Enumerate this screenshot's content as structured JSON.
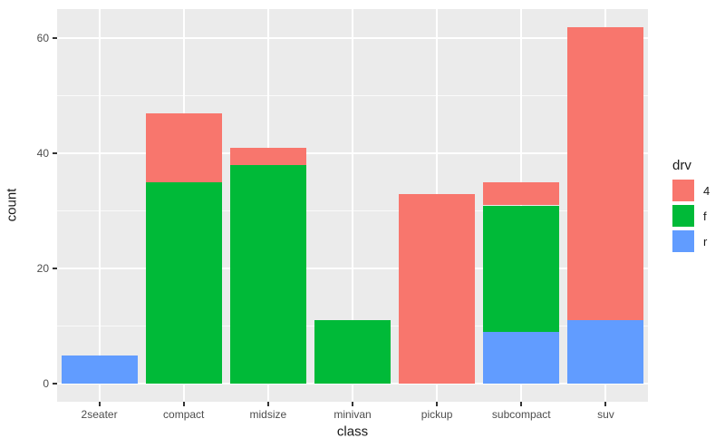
{
  "chart_data": {
    "type": "bar",
    "stacked": true,
    "title": "",
    "xlabel": "class",
    "ylabel": "count",
    "categories": [
      "2seater",
      "compact",
      "midsize",
      "minivan",
      "pickup",
      "subcompact",
      "suv"
    ],
    "series": [
      {
        "name": "r",
        "color": "#619CFF",
        "values": [
          5,
          0,
          0,
          0,
          0,
          9,
          11
        ]
      },
      {
        "name": "f",
        "color": "#00BA38",
        "values": [
          0,
          35,
          38,
          11,
          0,
          22,
          0
        ]
      },
      {
        "name": "4",
        "color": "#F8766D",
        "values": [
          0,
          12,
          3,
          0,
          33,
          4,
          51
        ]
      }
    ],
    "stack_order": "series listed bottom-to-top",
    "y_tick_labels": [
      "0",
      "20",
      "40",
      "60"
    ],
    "y_tick_values": [
      0,
      20,
      40,
      60
    ],
    "y_minor_values": [
      10,
      30,
      50
    ],
    "ylim": [
      -3.1,
      65.1
    ],
    "grid": "horizontal major+minor, vertical major at category centers",
    "legend": {
      "position": "right",
      "title": "drv",
      "entries": [
        {
          "label": "4",
          "color": "#F8766D"
        },
        {
          "label": "f",
          "color": "#00BA38"
        },
        {
          "label": "r",
          "color": "#619CFF"
        }
      ]
    },
    "colors": {
      "panel_bg": "#EBEBEB",
      "grid": "#FFFFFF",
      "tick_text": "#4D4D4D",
      "title_text": "#1A1A1A",
      "tick_mark": "#333333",
      "figure_bg": "#FFFFFF"
    }
  }
}
